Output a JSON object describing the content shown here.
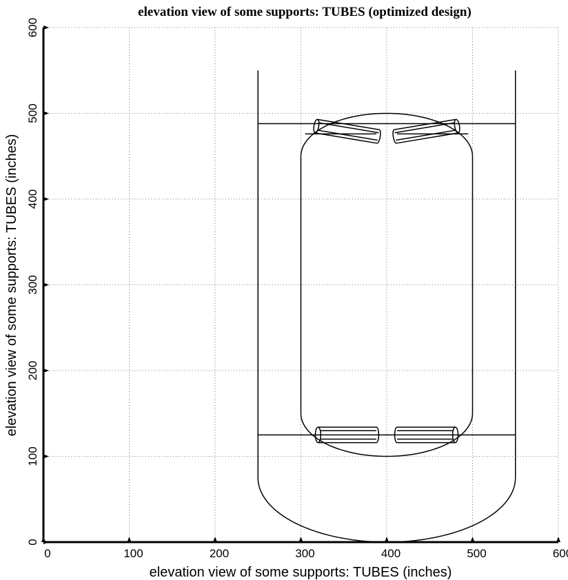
{
  "chart_data": {
    "type": "line",
    "title": "elevation view of some supports: TUBES (optimized design)",
    "xlabel": "elevation view of some supports: TUBES (inches)",
    "ylabel": "elevation view of some supports: TUBES (inches)",
    "xlim": [
      0,
      600
    ],
    "ylim": [
      0,
      600
    ],
    "xticks": [
      0,
      100,
      200,
      300,
      400,
      500,
      600
    ],
    "yticks": [
      0,
      100,
      200,
      300,
      400,
      500,
      600
    ],
    "grid": true,
    "series": [
      {
        "kind": "line",
        "points": [
          [
            250,
            550
          ],
          [
            250,
            75
          ]
        ]
      },
      {
        "kind": "line",
        "points": [
          [
            550,
            550
          ],
          [
            550,
            75
          ]
        ]
      },
      {
        "kind": "arc",
        "center": [
          400,
          75
        ],
        "rx": 150,
        "ry": 75,
        "from_deg": 180,
        "to_deg": 360
      },
      {
        "kind": "line",
        "points": [
          [
            250,
            488
          ],
          [
            550,
            488
          ]
        ]
      },
      {
        "kind": "line",
        "points": [
          [
            250,
            125
          ],
          [
            550,
            125
          ]
        ]
      },
      {
        "kind": "line",
        "points": [
          [
            300,
            450
          ],
          [
            300,
            150
          ]
        ]
      },
      {
        "kind": "line",
        "points": [
          [
            500,
            450
          ],
          [
            500,
            150
          ]
        ]
      },
      {
        "kind": "arc",
        "center": [
          400,
          450
        ],
        "rx": 100,
        "ry": 50,
        "from_deg": 0,
        "to_deg": 180
      },
      {
        "kind": "arc",
        "center": [
          400,
          150
        ],
        "rx": 100,
        "ry": 50,
        "from_deg": 180,
        "to_deg": 360
      },
      {
        "kind": "tube",
        "start": [
          318,
          485
        ],
        "end": [
          390,
          473
        ],
        "radius": 8
      },
      {
        "kind": "tube",
        "start": [
          482,
          485
        ],
        "end": [
          410,
          473
        ],
        "radius": 8
      },
      {
        "kind": "tube",
        "start": [
          320,
          125
        ],
        "end": [
          388,
          125
        ],
        "radius": 9
      },
      {
        "kind": "tube",
        "start": [
          480,
          125
        ],
        "end": [
          412,
          125
        ],
        "radius": 9
      },
      {
        "kind": "line",
        "points": [
          [
            305,
            476
          ],
          [
            388,
            476
          ]
        ]
      },
      {
        "kind": "line",
        "points": [
          [
            412,
            476
          ],
          [
            495,
            476
          ]
        ]
      }
    ]
  }
}
